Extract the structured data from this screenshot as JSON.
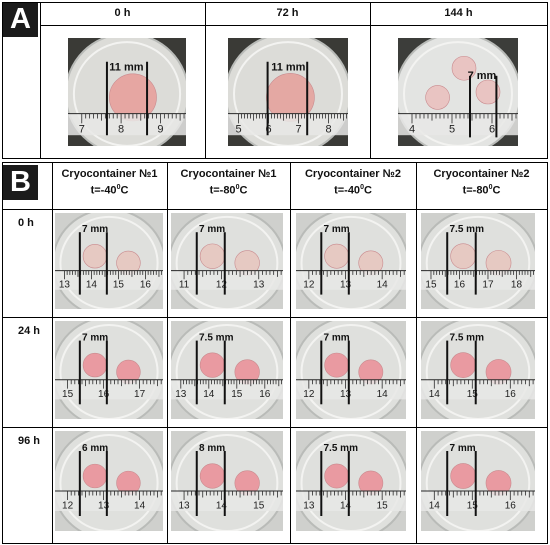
{
  "panels": {
    "a": "A",
    "b": "B"
  },
  "panel_a": {
    "columns": [
      "0 h",
      "72 h",
      "144 h"
    ],
    "photos": [
      {
        "measure": "11 mm",
        "ticks": [
          "7",
          "8",
          "9"
        ]
      },
      {
        "measure": "11 mm",
        "ticks": [
          "5",
          "6",
          "7",
          "8"
        ]
      },
      {
        "measure": "7 mm",
        "ticks": [
          "4",
          "5",
          "6"
        ]
      }
    ]
  },
  "panel_b": {
    "columns": [
      {
        "line1": "Cryocontainer №1",
        "line2": "t=-40",
        "sup": "0",
        "unit": "C"
      },
      {
        "line1": "Cryocontainer №1",
        "line2": "t=-80",
        "sup": "0",
        "unit": "C"
      },
      {
        "line1": "Cryocontainer №2",
        "line2": "t=-40",
        "sup": "0",
        "unit": "C"
      },
      {
        "line1": "Cryocontainer №2",
        "line2": "t=-80",
        "sup": "0",
        "unit": "C"
      }
    ],
    "rows": [
      {
        "label": "0 h",
        "cells": [
          {
            "measure": "7 mm",
            "ticks": [
              "13",
              "14",
              "15",
              "16"
            ]
          },
          {
            "measure": "7 mm",
            "ticks": [
              "11",
              "12",
              "13"
            ]
          },
          {
            "measure": "7 mm",
            "ticks": [
              "12",
              "13",
              "14"
            ]
          },
          {
            "measure": "7.5 mm",
            "ticks": [
              "15",
              "16",
              "17",
              "18"
            ]
          }
        ]
      },
      {
        "label": "24 h",
        "cells": [
          {
            "measure": "7 mm",
            "ticks": [
              "15",
              "16",
              "17"
            ]
          },
          {
            "measure": "7.5 mm",
            "ticks": [
              "13",
              "14",
              "15",
              "16"
            ]
          },
          {
            "measure": "7 mm",
            "ticks": [
              "12",
              "13",
              "14"
            ]
          },
          {
            "measure": "7.5 mm",
            "ticks": [
              "14",
              "15",
              "16"
            ]
          }
        ]
      },
      {
        "label": "96 h",
        "cells": [
          {
            "measure": "6 mm",
            "ticks": [
              "12",
              "13",
              "14"
            ]
          },
          {
            "measure": "8 mm",
            "ticks": [
              "13",
              "14",
              "15"
            ]
          },
          {
            "measure": "7.5 mm",
            "ticks": [
              "13",
              "14",
              "15"
            ]
          },
          {
            "measure": "7 mm",
            "ticks": [
              "14",
              "15",
              "16"
            ]
          }
        ]
      }
    ]
  },
  "colors": {
    "disc_pink": "#e99aa1",
    "disc_pale": "#e6c9c2",
    "ruler": "#2a2a2a",
    "tray": "#d9dbd8"
  }
}
